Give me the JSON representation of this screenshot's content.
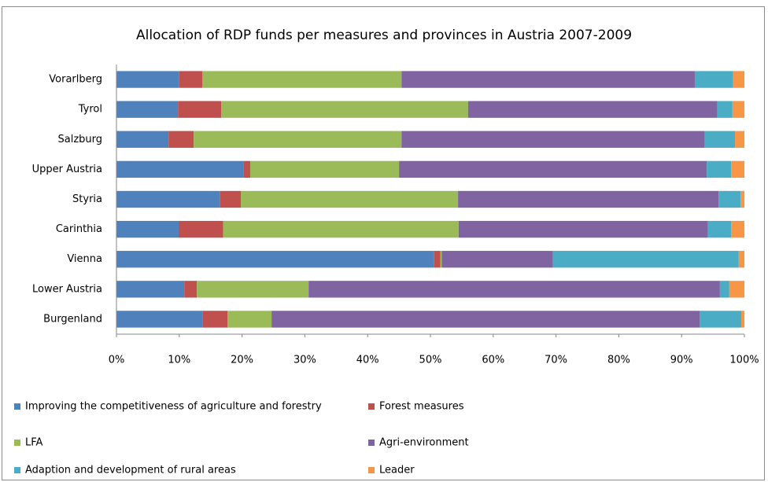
{
  "chart_data": {
    "type": "stacked_barh",
    "title": "Allocation of RDP funds per measures and provinces in Austria 2007-2009",
    "categories": [
      "Vorarlberg",
      "Tyrol",
      "Salzburg",
      "Upper Austria",
      "Styria",
      "Carinthia",
      "Vienna",
      "Lower Austria",
      "Burgenland"
    ],
    "series": [
      {
        "name": "Improving the competitiveness of agriculture and forestry",
        "color": "#4f81bd",
        "values": [
          10.0,
          9.8,
          8.3,
          20.2,
          16.5,
          9.9,
          50.6,
          10.8,
          13.7
        ]
      },
      {
        "name": "Forest measures",
        "color": "#c0504d",
        "values": [
          3.7,
          6.9,
          4.0,
          1.1,
          3.3,
          7.1,
          1.0,
          2.0,
          4.0
        ]
      },
      {
        "name": "LFA",
        "color": "#9bbb59",
        "values": [
          31.7,
          39.3,
          33.1,
          23.7,
          34.6,
          37.5,
          0.2,
          17.8,
          7.0
        ]
      },
      {
        "name": "Agri-environment",
        "color": "#8064a2",
        "values": [
          46.7,
          39.7,
          48.3,
          49.0,
          41.5,
          39.7,
          17.7,
          65.5,
          68.2
        ]
      },
      {
        "name": "Adaption and development of rural areas",
        "color": "#4bacc6",
        "values": [
          6.1,
          2.4,
          4.8,
          3.9,
          3.5,
          3.7,
          29.6,
          1.5,
          6.6
        ]
      },
      {
        "name": "Leader",
        "color": "#f79646",
        "values": [
          1.8,
          1.9,
          1.5,
          2.1,
          0.6,
          2.1,
          0.9,
          2.4,
          0.5
        ]
      }
    ],
    "xlim": [
      0,
      100
    ],
    "xticks": [
      {
        "value": 0,
        "label": "0%"
      },
      {
        "value": 10,
        "label": "10%"
      },
      {
        "value": 20,
        "label": "20%"
      },
      {
        "value": 30,
        "label": "30%"
      },
      {
        "value": 40,
        "label": "40%"
      },
      {
        "value": 50,
        "label": "50%"
      },
      {
        "value": 60,
        "label": "60%"
      },
      {
        "value": 70,
        "label": "70%"
      },
      {
        "value": 80,
        "label": "80%"
      },
      {
        "value": 90,
        "label": "90%"
      },
      {
        "value": 100,
        "label": "100%"
      }
    ]
  }
}
